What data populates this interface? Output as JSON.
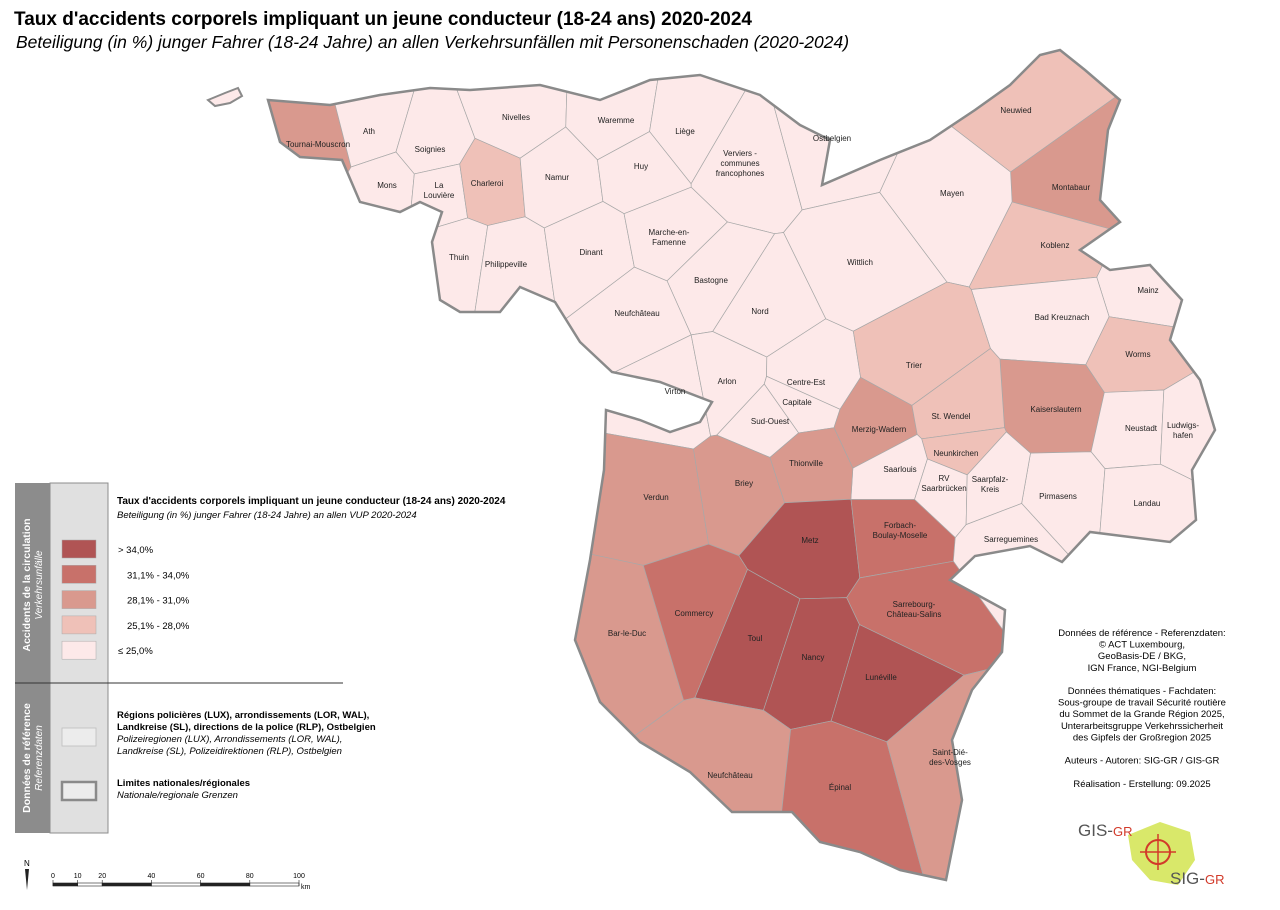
{
  "title": "Taux d'accidents corporels impliquant un jeune conducteur (18-24 ans) 2020-2024",
  "subtitle": "Beteiligung (in %) junger Fahrer (18-24 Jahre) an allen Verkehrsunfällen mit Personenschaden (2020-2024)",
  "legend": {
    "side_top": [
      "Accidents de la circulation",
      "Verkehrsunfälle"
    ],
    "side_bottom": [
      "Données de référence",
      "Referenzdaten"
    ],
    "title": "Taux d'accidents corporels impliquant un jeune conducteur (18-24 ans) 2020-2024",
    "subtitle": "Beteiligung (in %) junger Fahrer (18-24 Jahre) an allen VUP 2020-2024",
    "classes": [
      {
        "label": "> 34,0%",
        "color": "#b05454"
      },
      {
        "label": "31,1% - 34,0%",
        "color": "#c8716a"
      },
      {
        "label": "28,1% - 31,0%",
        "color": "#d9998e"
      },
      {
        "label": "25,1% -  28,0%",
        "color": "#efc1b8"
      },
      {
        "label": "≤ 25,0%",
        "color": "#fde9e9"
      }
    ],
    "references": [
      {
        "bold": [
          "Régions policières (LUX), arrondissements (LOR, WAL),",
          "Landkreise (SL), directions de la police (RLP), Ostbelgien"
        ],
        "italic": [
          "Polizeiregionen (LUX), Arrondissements (LOR, WAL),",
          "Landkreise (SL), Polizeidirektionen (RLP), Ostbelgien"
        ]
      },
      {
        "bold": [
          "Limites nationales/régionales"
        ],
        "italic": [
          "Nationale/regionale Grenzen"
        ]
      }
    ]
  },
  "credits": [
    "Données de référence - Referenzdaten:",
    "© ACT Luxembourg,",
    "GeoBasis-DE / BKG,",
    "IGN France, NGI-Belgium",
    "",
    "Données thématiques - Fachdaten:",
    "Sous-groupe de travail Sécurité routière",
    "du Sommet de la Grande Région 2025,",
    "Unterarbeitsgruppe Verkehrssicherheit",
    "des Gipfels der Großregion 2025",
    "",
    "Auteurs - Autoren: SIG-GR / GIS-GR",
    "",
    "Réalisation - Erstellung: 09.2025"
  ],
  "logo": {
    "top": [
      "GIS-",
      "GR"
    ],
    "bottom": [
      "SIG-",
      "GR"
    ]
  },
  "north": "N",
  "scale": {
    "ticks": [
      0,
      10,
      20,
      40,
      60,
      80,
      100
    ],
    "unit": "km"
  },
  "regions": [
    {
      "label": [
        "Tournai-Mouscron"
      ],
      "class": 2
    },
    {
      "label": [
        "Ath"
      ],
      "class": 4
    },
    {
      "label": [
        "Soignies"
      ],
      "class": 4
    },
    {
      "label": [
        "Nivelles"
      ],
      "class": 4
    },
    {
      "label": [
        "Waremme"
      ],
      "class": 4
    },
    {
      "label": [
        "Liège"
      ],
      "class": 4
    },
    {
      "label": [
        "Verviers -",
        "communes",
        "francophones"
      ],
      "class": 4
    },
    {
      "label": [
        "Ostbelgien"
      ],
      "class": 4
    },
    {
      "label": [
        "Mons"
      ],
      "class": 4
    },
    {
      "label": [
        "La",
        "Louvière"
      ],
      "class": 4
    },
    {
      "label": [
        "Charleroi"
      ],
      "class": 3
    },
    {
      "label": [
        "Namur"
      ],
      "class": 4
    },
    {
      "label": [
        "Huy"
      ],
      "class": 4
    },
    {
      "label": [
        "Thuin"
      ],
      "class": 4
    },
    {
      "label": [
        "Philippeville"
      ],
      "class": 4
    },
    {
      "label": [
        "Dinant"
      ],
      "class": 4
    },
    {
      "label": [
        "Marche-en-",
        "Famenne"
      ],
      "class": 4
    },
    {
      "label": [
        "Bastogne"
      ],
      "class": 4
    },
    {
      "label": [
        "Neufchâteau"
      ],
      "class": 4
    },
    {
      "label": [
        "Virton"
      ],
      "class": 4
    },
    {
      "label": [
        "Arlon"
      ],
      "class": 4
    },
    {
      "label": [
        "Nord"
      ],
      "class": 4
    },
    {
      "label": [
        "Centre-Est"
      ],
      "class": 4
    },
    {
      "label": [
        "Capitale"
      ],
      "class": 4
    },
    {
      "label": [
        "Sud-Ouest"
      ],
      "class": 4
    },
    {
      "label": [
        "Neuwied"
      ],
      "class": 3
    },
    {
      "label": [
        "Montabaur"
      ],
      "class": 2
    },
    {
      "label": [
        "Mayen"
      ],
      "class": 4
    },
    {
      "label": [
        "Koblenz"
      ],
      "class": 3
    },
    {
      "label": [
        "Wittlich"
      ],
      "class": 4
    },
    {
      "label": [
        "Mainz"
      ],
      "class": 4
    },
    {
      "label": [
        "Bad Kreuznach"
      ],
      "class": 4
    },
    {
      "label": [
        "Trier"
      ],
      "class": 3
    },
    {
      "label": [
        "Worms"
      ],
      "class": 3
    },
    {
      "label": [
        "Kaiserslautern"
      ],
      "class": 2
    },
    {
      "label": [
        "Neustadt"
      ],
      "class": 4
    },
    {
      "label": [
        "Ludwigs-",
        "hafen"
      ],
      "class": 4
    },
    {
      "label": [
        "Pirmasens"
      ],
      "class": 4
    },
    {
      "label": [
        "Landau"
      ],
      "class": 4
    },
    {
      "label": [
        "Merzig-Wadern"
      ],
      "class": 2
    },
    {
      "label": [
        "St. Wendel"
      ],
      "class": 3
    },
    {
      "label": [
        "Neunkirchen"
      ],
      "class": 3
    },
    {
      "label": [
        "Saarlouis"
      ],
      "class": 4
    },
    {
      "label": [
        "RV",
        "Saarbrücken"
      ],
      "class": 4
    },
    {
      "label": [
        "Saarpfalz-",
        "Kreis"
      ],
      "class": 4
    },
    {
      "label": [
        "Verdun"
      ],
      "class": 2
    },
    {
      "label": [
        "Briey"
      ],
      "class": 2
    },
    {
      "label": [
        "Thionville"
      ],
      "class": 2
    },
    {
      "label": [
        "Metz"
      ],
      "class": 0
    },
    {
      "label": [
        "Forbach-",
        "Boulay-Moselle"
      ],
      "class": 1
    },
    {
      "label": [
        "Sarreguemines"
      ],
      "class": 4
    },
    {
      "label": [
        "Bar-le-Duc"
      ],
      "class": 2
    },
    {
      "label": [
        "Commercy"
      ],
      "class": 1
    },
    {
      "label": [
        "Toul"
      ],
      "class": 0
    },
    {
      "label": [
        "Nancy"
      ],
      "class": 0
    },
    {
      "label": [
        "Sarrebourg-",
        "Château-Salins"
      ],
      "class": 1
    },
    {
      "label": [
        "Lunéville"
      ],
      "class": 0
    },
    {
      "label": [
        "Neufchâteau"
      ],
      "class": 2
    },
    {
      "label": [
        "Épinal"
      ],
      "class": 1
    },
    {
      "label": [
        "Saint-Dié-",
        "des-Vosges"
      ],
      "class": 2
    }
  ]
}
